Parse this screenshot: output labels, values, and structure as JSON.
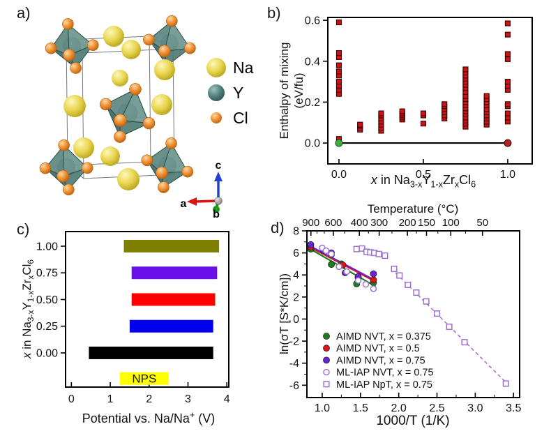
{
  "figure": {
    "background": "#ffffff",
    "panels": {
      "a_label": "a)",
      "b_label": "b)",
      "c_label": "c)",
      "d_label": "d)"
    }
  },
  "panel_a": {
    "legend": [
      {
        "label": "Na",
        "color": "#e8d44d"
      },
      {
        "label": "Y",
        "color": "#4e7d78"
      },
      {
        "label": "Cl",
        "color": "#ee8f33"
      }
    ],
    "axes": {
      "a": "a",
      "b": "b",
      "c": "c",
      "a_color": "#dd1111",
      "b_color": "#1c9c1c",
      "c_color": "#2244cc"
    }
  },
  "chart_data": [
    {
      "id": "b",
      "type": "scatter",
      "title": "",
      "xlabel": "x in Na_{3-x}Y_{1-x}Zr_{x}Cl_{6}",
      "ylabel_lines": [
        "Enthalpy of mixing",
        "(eV/fu)"
      ],
      "xlim": [
        -0.066,
        1.145
      ],
      "ylim": [
        -0.102,
        0.614
      ],
      "x_ticks": [
        0.0,
        0.5,
        1.0
      ],
      "x_tick_labels": [
        "0.0",
        "0.5",
        "1.0"
      ],
      "y_ticks": [
        0.0,
        0.2,
        0.4,
        0.6
      ],
      "y_tick_labels": [
        "0.0",
        "0.2",
        "0.4",
        "0.6"
      ],
      "marker": {
        "shape": "square",
        "fill": "#cc1414",
        "edge": "#330000",
        "size": 7
      },
      "zero_line_y": 0.0,
      "groups": [
        {
          "x": 0.0,
          "y": [
            0.02,
            0.24,
            0.26,
            0.28,
            0.3,
            0.33,
            0.35,
            0.38,
            0.42,
            0.44,
            0.59
          ]
        },
        {
          "x": 0.125,
          "y": [
            0.065,
            0.075,
            0.085,
            0.09
          ]
        },
        {
          "x": 0.25,
          "y": [
            0.06,
            0.075,
            0.09,
            0.105,
            0.12,
            0.135,
            0.145
          ]
        },
        {
          "x": 0.375,
          "y": [
            0.115,
            0.125,
            0.135,
            0.145,
            0.155
          ]
        },
        {
          "x": 0.5,
          "y": [
            0.095,
            0.135,
            0.145
          ]
        },
        {
          "x": 0.625,
          "y": [
            0.12,
            0.135,
            0.15,
            0.165,
            0.18,
            0.19
          ]
        },
        {
          "x": 0.75,
          "y": [
            0.08,
            0.095,
            0.11,
            0.125,
            0.14,
            0.155,
            0.17,
            0.185,
            0.2,
            0.215,
            0.23,
            0.25,
            0.27,
            0.285,
            0.3,
            0.315,
            0.33,
            0.345,
            0.36
          ]
        },
        {
          "x": 0.875,
          "y": [
            0.09,
            0.105,
            0.12,
            0.135,
            0.15,
            0.165,
            0.185,
            0.2,
            0.215,
            0.23
          ]
        },
        {
          "x": 1.0,
          "y": [
            0.105,
            0.125,
            0.145,
            0.18,
            0.19,
            0.26,
            0.28,
            0.3,
            0.41,
            0.435,
            0.53,
            0.585
          ]
        }
      ],
      "endpoints": [
        {
          "x": 0.0,
          "y": 0.0,
          "color": "#3fae3f",
          "edge": "#145214"
        },
        {
          "x": 1.0,
          "y": 0.0,
          "color": "#b22222",
          "edge": "#330000"
        }
      ]
    },
    {
      "id": "c",
      "type": "bar",
      "title": "",
      "xlabel": "Potential vs. Na/Na^{+} (V)",
      "ylabel": "x in Na_{3-x}Y_{1-x}Zr_{x}Cl_{6}",
      "xlim": [
        -0.15,
        4.05
      ],
      "ylim": [
        -0.3205,
        1.137
      ],
      "x_ticks": [
        0,
        1,
        2,
        3,
        4
      ],
      "x_tick_labels": [
        "0",
        "1",
        "2",
        "3",
        "4"
      ],
      "y_ticks": [
        0.0,
        0.25,
        0.5,
        0.75,
        1.0
      ],
      "y_tick_labels": [
        "0.00",
        "0.25",
        "0.50",
        "0.75",
        "1.00"
      ],
      "bars": [
        {
          "y": 1.0,
          "from": 1.35,
          "to": 3.8,
          "color": "#7f7f00"
        },
        {
          "y": 0.75,
          "from": 1.55,
          "to": 3.75,
          "color": "#6a0fe8"
        },
        {
          "y": 0.5,
          "from": 1.55,
          "to": 3.7,
          "color": "#ff0000"
        },
        {
          "y": 0.25,
          "from": 1.5,
          "to": 3.65,
          "color": "#0000ee"
        },
        {
          "y": 0.0,
          "from": 0.45,
          "to": 3.65,
          "color": "#000000"
        }
      ],
      "extra_bar": {
        "label": "NPS",
        "y": -0.24,
        "from": 1.25,
        "to": 2.5,
        "color": "#ffff00",
        "text_color": "#111111"
      }
    },
    {
      "id": "d",
      "type": "scatter",
      "title": "",
      "xlabel": "1000/T (1/K)",
      "ylabel": "ln(σT [S*K/cm])",
      "top_axis_label": "Temperature (°C)",
      "top_ticks_temperature": [
        900,
        600,
        400,
        300,
        200,
        150,
        100,
        50
      ],
      "top_minor_temperatures": [
        800,
        700,
        500,
        350,
        250,
        175,
        125,
        75
      ],
      "xlim": [
        0.8,
        3.58
      ],
      "ylim": [
        -7.12,
        8.0
      ],
      "x_ticks": [
        1.0,
        1.5,
        2.0,
        2.5,
        3.0,
        3.5
      ],
      "x_tick_labels": [
        "1.0",
        "1.5",
        "2.0",
        "2.5",
        "3.0",
        "3.5"
      ],
      "y_ticks": [
        -6,
        -4,
        -2,
        0,
        2,
        4,
        6,
        8
      ],
      "y_tick_labels": [
        "-6",
        "-4",
        "-2",
        "0",
        "2",
        "4",
        "6",
        "8"
      ],
      "series": [
        {
          "name": "AIMD NVT, x = 0.375",
          "marker": "circle",
          "color": "#1e7d1e",
          "open": false,
          "points": [
            [
              0.85,
              6.35
            ],
            [
              1.12,
              4.95
            ],
            [
              1.25,
              5.0
            ],
            [
              1.45,
              3.2
            ],
            [
              1.67,
              3.3
            ]
          ],
          "fit_line": {
            "from": [
              0.82,
              6.45
            ],
            "to": [
              1.7,
              2.95
            ],
            "style": "solid"
          }
        },
        {
          "name": "AIMD NVT, x = 0.5",
          "marker": "circle",
          "color": "#e31212",
          "open": false,
          "points": [
            [
              0.85,
              6.55
            ],
            [
              1.12,
              5.85
            ],
            [
              1.27,
              4.9
            ],
            [
              1.47,
              3.75
            ],
            [
              1.67,
              3.55
            ]
          ],
          "fit_line": {
            "from": [
              0.82,
              6.6
            ],
            "to": [
              1.68,
              3.45
            ],
            "style": "solid"
          }
        },
        {
          "name": "AIMD NVT, x = 0.75",
          "marker": "circle",
          "color": "#6a21d8",
          "open": false,
          "points": [
            [
              0.85,
              6.75
            ],
            [
              1.02,
              6.2
            ],
            [
              1.12,
              6.0
            ],
            [
              1.3,
              4.2
            ],
            [
              1.47,
              3.85
            ],
            [
              1.67,
              4.1
            ]
          ],
          "fit_line": {
            "from": [
              0.82,
              6.7
            ],
            "to": [
              1.68,
              3.55
            ],
            "style": "solid"
          }
        },
        {
          "name": "ML-IAP NVT, x = 0.75",
          "marker": "circle",
          "color": "#9e6fd2",
          "open": true,
          "points": [
            [
              1.0,
              6.45
            ],
            [
              1.05,
              6.2
            ],
            [
              1.12,
              5.9
            ],
            [
              1.22,
              4.75
            ],
            [
              1.32,
              4.3
            ],
            [
              1.47,
              3.5
            ],
            [
              1.57,
              3.15
            ],
            [
              1.67,
              2.75
            ]
          ]
        },
        {
          "name": "ML-IAP NpT, x = 0.75",
          "marker": "square",
          "color": "#9e6fd2",
          "open": true,
          "points": [
            [
              1.45,
              6.35
            ],
            [
              1.52,
              6.4
            ],
            [
              1.58,
              6.1
            ],
            [
              1.63,
              6.05
            ],
            [
              1.68,
              6.0
            ],
            [
              1.74,
              5.9
            ],
            [
              1.82,
              5.75
            ],
            [
              1.94,
              4.55
            ],
            [
              2.01,
              3.95
            ],
            [
              2.12,
              3.1
            ],
            [
              2.23,
              2.4
            ],
            [
              2.36,
              1.6
            ],
            [
              2.5,
              0.5
            ],
            [
              2.66,
              -0.7
            ],
            [
              2.86,
              -2.1
            ],
            [
              3.4,
              -5.85
            ]
          ],
          "fit_line": {
            "from": [
              1.9,
              4.6
            ],
            "to": [
              3.43,
              -5.95
            ],
            "style": "dashed"
          }
        }
      ],
      "legend_position": "bottom-left"
    }
  ]
}
